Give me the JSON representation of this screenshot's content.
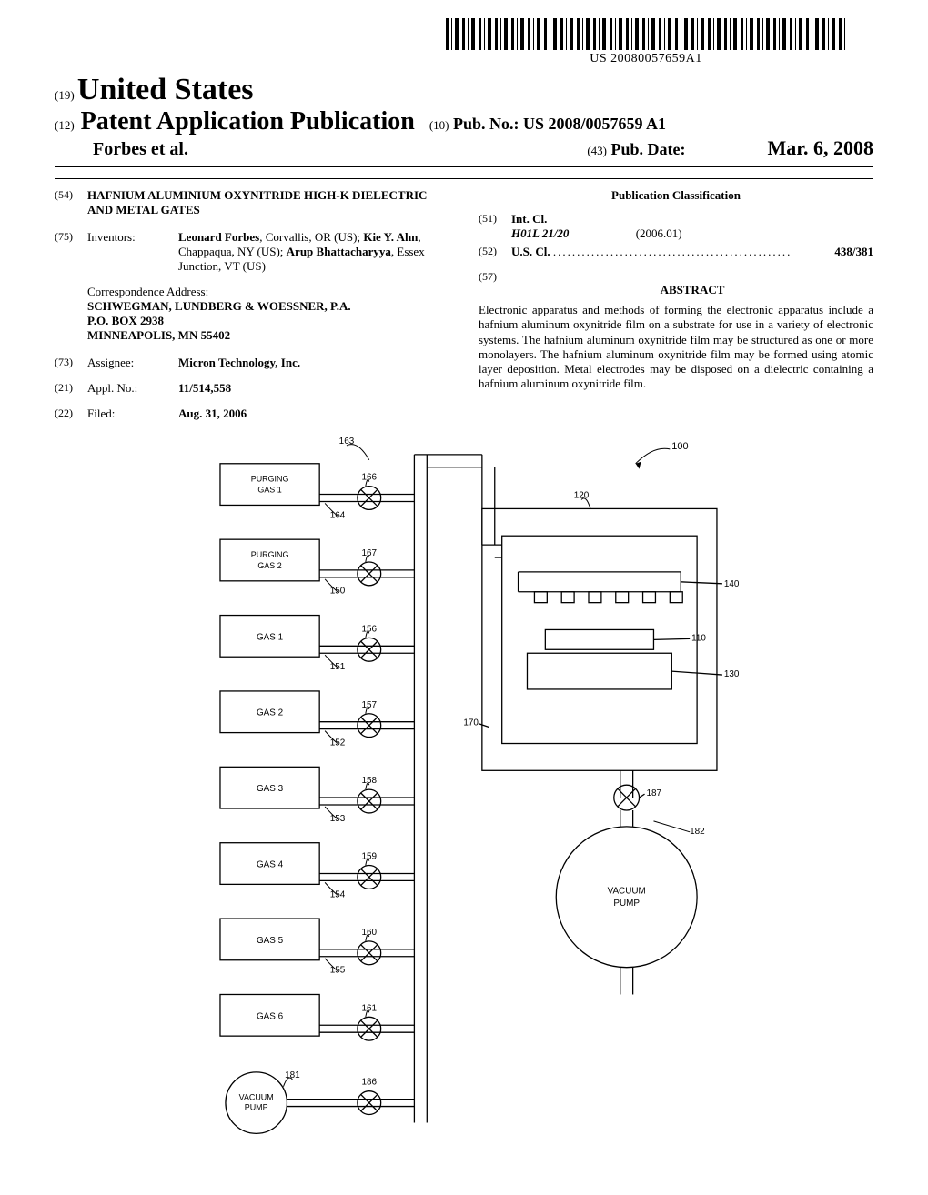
{
  "barcode_text": "US 20080057659A1",
  "header": {
    "country_code": "(19)",
    "country": "United States",
    "doc_type_code": "(12)",
    "doc_type": "Patent Application Publication",
    "authors": "Forbes et al.",
    "pub_no_code": "(10)",
    "pub_no_label": "Pub. No.:",
    "pub_no_value": "US 2008/0057659 A1",
    "pub_date_code": "(43)",
    "pub_date_label": "Pub. Date:",
    "pub_date_value": "Mar. 6, 2008"
  },
  "left": {
    "title_code": "(54)",
    "title": "HAFNIUM ALUMINIUM OXYNITRIDE HIGH-K DIELECTRIC AND METAL GATES",
    "inventors_code": "(75)",
    "inventors_label": "Inventors:",
    "inventors_value": "Leonard Forbes, Corvallis, OR (US); Kie Y. Ahn, Chappaqua, NY (US); Arup Bhattacharyya, Essex Junction, VT (US)",
    "corr_label": "Correspondence Address:",
    "corr_lines": [
      "SCHWEGMAN, LUNDBERG & WOESSNER, P.A.",
      "P.O. BOX 2938",
      "MINNEAPOLIS, MN 55402"
    ],
    "assignee_code": "(73)",
    "assignee_label": "Assignee:",
    "assignee_value": "Micron Technology, Inc.",
    "appl_code": "(21)",
    "appl_label": "Appl. No.:",
    "appl_value": "11/514,558",
    "filed_code": "(22)",
    "filed_label": "Filed:",
    "filed_value": "Aug. 31, 2006"
  },
  "right": {
    "class_heading": "Publication Classification",
    "intcl_code": "(51)",
    "intcl_label": "Int. Cl.",
    "intcl_value": "H01L 21/20",
    "intcl_year": "(2006.01)",
    "uscl_code": "(52)",
    "uscl_label": "U.S. Cl.",
    "uscl_value": "438/381",
    "abstract_code": "(57)",
    "abstract_heading": "ABSTRACT",
    "abstract_text": "Electronic apparatus and methods of forming the electronic apparatus include a hafnium aluminum oxynitride film on a substrate for use in a variety of electronic systems. The hafnium aluminum oxynitride film may be structured as one or more monolayers. The hafnium aluminum oxynitride film may be formed using atomic layer deposition. Metal electrodes may be disposed on a dielectric containing a hafnium aluminum oxynitride film."
  },
  "figure_left": {
    "main_ref": "163",
    "vacuum_label": "VACUUM PUMP",
    "vacuum_ref": "181",
    "vacuum_valve_ref": "186",
    "purge_blocks": [
      {
        "label": "PURGING GAS 1",
        "port_ref": "164",
        "valve_ref": "166"
      },
      {
        "label": "PURGING GAS 2",
        "port_ref": "150",
        "valve_ref": "167"
      }
    ],
    "gas_blocks": [
      {
        "label": "GAS 1",
        "port_ref": "151",
        "valve_ref": "156"
      },
      {
        "label": "GAS 2",
        "port_ref": "152",
        "valve_ref": "157"
      },
      {
        "label": "GAS 3",
        "port_ref": "153",
        "valve_ref": "158"
      },
      {
        "label": "GAS 4",
        "port_ref": "154",
        "valve_ref": "159"
      },
      {
        "label": "GAS 5",
        "port_ref": "155",
        "valve_ref": "160"
      },
      {
        "label": "GAS 6",
        "port_ref": "",
        "valve_ref": "161"
      }
    ]
  },
  "figure_right": {
    "assembly_ref": "100",
    "chamber_ref": "120",
    "showerhead_ref": "140",
    "wafer_ref": "110",
    "heater_ref": "130",
    "port_ref": "170",
    "valve_ref": "187",
    "line_ref": "182",
    "vacuum_label": "VACUUM PUMP"
  },
  "style": {
    "stroke": "#000000",
    "stroke_width": 1.3,
    "font": "Arial, sans-serif"
  }
}
